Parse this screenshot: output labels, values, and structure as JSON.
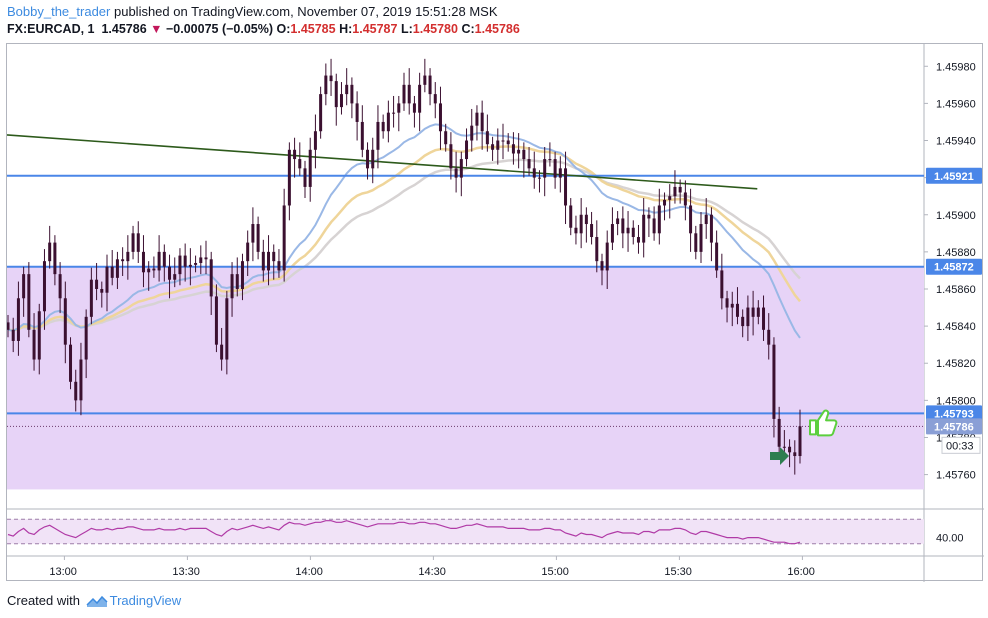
{
  "header": {
    "author": "Bobby_the_trader",
    "published_text": "published on TradingView.com, November 07, 2019 15:51:28 MSK",
    "symbol": "FX:EURCAD, 1",
    "last": "1.45786",
    "change": "−0.00075 (−0.05%)",
    "open_label": "O:",
    "open": "1.45785",
    "high_label": "H:",
    "high": "1.45787",
    "low_label": "L:",
    "low": "1.45780",
    "close_label": "C:",
    "close": "1.45786"
  },
  "footer": {
    "created_with": "Created with",
    "brand": "TradingView"
  },
  "colors": {
    "candle": "#3b1030",
    "zone_fill": "#e7d3f7",
    "level_line": "#4a86e8",
    "trendline": "#2d5a1b",
    "ma_blue": "#9ab8e6",
    "ma_yellow": "#efd59a",
    "ma_grey": "#d7d3d3",
    "osc_line": "#b03aa6",
    "osc_fill": "#f1e3f7",
    "thumb": "#5ccf3e",
    "arrow": "#2e7d50"
  },
  "chart_data": {
    "type": "candlestick",
    "symbol": "FX:EURCAD",
    "timeframe": "1 minute",
    "x_ticks": [
      "13:00",
      "13:30",
      "14:00",
      "14:30",
      "15:00",
      "15:30",
      "16:00"
    ],
    "y_ticks": [
      "1.45760",
      "1.45780",
      "1.45800",
      "1.45820",
      "1.45840",
      "1.45860",
      "1.45880",
      "1.45900",
      "1.45920",
      "1.45940",
      "1.45960",
      "1.45980"
    ],
    "price_range": [
      1.45742,
      1.45992
    ],
    "levels": [
      {
        "label": "1.45921",
        "price": 1.45921
      },
      {
        "label": "1.45872",
        "price": 1.45872
      },
      {
        "label": "1.45793",
        "price": 1.45793
      }
    ],
    "current_price": {
      "label": "1.45786",
      "price": 1.45786
    },
    "countdown": "00:33",
    "support_zone": [
      1.45752,
      1.45872
    ],
    "trendline": {
      "start": [
        "12:46",
        1.45943
      ],
      "end": [
        "15:49",
        1.45914
      ]
    },
    "oscillator_label": "40.00",
    "closes": [
      1.45838,
      1.45832,
      1.45855,
      1.45868,
      1.45838,
      1.45822,
      1.45848,
      1.45875,
      1.45885,
      1.45868,
      1.45855,
      1.4583,
      1.4581,
      1.458,
      1.45822,
      1.45845,
      1.45865,
      1.4586,
      1.45858,
      1.45872,
      1.45866,
      1.45876,
      1.45875,
      1.4588,
      1.4589,
      1.4588,
      1.45869,
      1.45871,
      1.4587,
      1.4588,
      1.45872,
      1.45865,
      1.45868,
      1.45878,
      1.45872,
      1.45873,
      1.45874,
      1.45877,
      1.45876,
      1.45856,
      1.4583,
      1.45822,
      1.45855,
      1.45868,
      1.4586,
      1.45875,
      1.45885,
      1.45895,
      1.4588,
      1.4587,
      1.4588,
      1.45875,
      1.4587,
      1.45905,
      1.45935,
      1.4593,
      1.45925,
      1.45915,
      1.45935,
      1.45945,
      1.45965,
      1.45975,
      1.45972,
      1.45958,
      1.45965,
      1.4597,
      1.4596,
      1.4595,
      1.45935,
      1.45925,
      1.45935,
      1.4595,
      1.45945,
      1.45955,
      1.45955,
      1.4596,
      1.4597,
      1.4596,
      1.45955,
      1.4597,
      1.45975,
      1.45965,
      1.4596,
      1.45945,
      1.45938,
      1.45925,
      1.4592,
      1.4593,
      1.4594,
      1.45948,
      1.45955,
      1.45945,
      1.45938,
      1.45935,
      1.4594,
      1.4594,
      1.45938,
      1.45933,
      1.45935,
      1.4593,
      1.45925,
      1.4592,
      1.4592,
      1.4593,
      1.4593,
      1.4592,
      1.45925,
      1.45905,
      1.45893,
      1.4589,
      1.459,
      1.45895,
      1.45888,
      1.45875,
      1.4587,
      1.45885,
      1.45895,
      1.45898,
      1.4589,
      1.45893,
      1.45888,
      1.45885,
      1.459,
      1.45898,
      1.4589,
      1.45905,
      1.45908,
      1.4591,
      1.45915,
      1.45912,
      1.45905,
      1.4589,
      1.4588,
      1.45895,
      1.459,
      1.45885,
      1.4587,
      1.45855,
      1.4585,
      1.45852,
      1.45845,
      1.4584,
      1.4585,
      1.45845,
      1.4585,
      1.45838,
      1.4583,
      1.4579,
      1.45775,
      1.45775,
      1.45772,
      1.4577,
      1.45786
    ],
    "osc_values": [
      42,
      41,
      44,
      46,
      43,
      42,
      45,
      47,
      48,
      46,
      44,
      42,
      41,
      40,
      42,
      44,
      46,
      45,
      45,
      46,
      45,
      46,
      46,
      47,
      47,
      46,
      45,
      45,
      45,
      46,
      45,
      45,
      45,
      46,
      45,
      46,
      46,
      46,
      46,
      44,
      42,
      41,
      44,
      46,
      45,
      46,
      47,
      48,
      47,
      46,
      47,
      46,
      45,
      48,
      50,
      49,
      49,
      48,
      49,
      50,
      50,
      51,
      51,
      50,
      50,
      51,
      50,
      49,
      48,
      47,
      48,
      49,
      49,
      49,
      49,
      50,
      50,
      49,
      49,
      50,
      50,
      49,
      49,
      48,
      47,
      46,
      46,
      47,
      48,
      48,
      49,
      48,
      47,
      47,
      47,
      47,
      46,
      46,
      46,
      46,
      45,
      45,
      45,
      46,
      46,
      45,
      45,
      43,
      42,
      41,
      43,
      42,
      42,
      41,
      40,
      42,
      43,
      44,
      43,
      43,
      43,
      42,
      44,
      44,
      43,
      45,
      45,
      45,
      46,
      46,
      45,
      43,
      42,
      44,
      44,
      43,
      42,
      41,
      40,
      40,
      40,
      39,
      40,
      40,
      40,
      39,
      38,
      37,
      37,
      37,
      36,
      36,
      37
    ]
  }
}
